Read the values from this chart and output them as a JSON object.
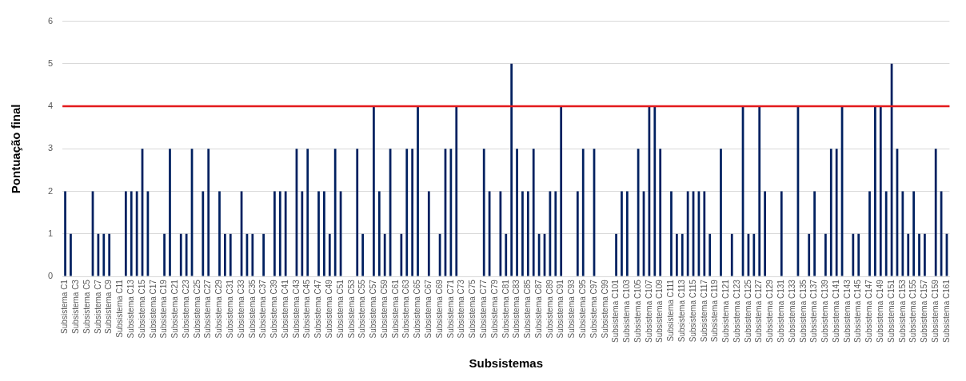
{
  "chart_data": {
    "type": "bar",
    "xlabel": "Subsistemas",
    "ylabel": "Pontuação final",
    "categories": [
      "Subsistema C1",
      null,
      "Subsistema C3",
      null,
      "Subsistema C5",
      null,
      "Subsistema C7",
      null,
      "Subsistema C9",
      null,
      "Subsistema C11",
      null,
      "Subsistema C13",
      null,
      "Subsistema C15",
      null,
      "Subsistema C17",
      null,
      "Subsistema C19",
      null,
      "Subsistema C21",
      null,
      "Subsistema C23",
      null,
      "Subsistema C25",
      null,
      "Subsistema C27",
      null,
      "Subsistema C29",
      null,
      "Subsistema C31",
      null,
      "Subsistema C33",
      null,
      "Subsistema C35",
      null,
      "Subsistema C37",
      null,
      "Subsistema C39",
      null,
      "Subsistema C41",
      null,
      "Subsistema C43",
      null,
      "Subsistema C45",
      null,
      "Subsistema C47",
      null,
      "Subsistema C49",
      null,
      "Subsistema C51",
      null,
      "Subsistema C53",
      null,
      "Subsistema C55",
      null,
      "Subsistema C57",
      null,
      "Subsistema C59",
      null,
      "Subsistema C61",
      null,
      "Subsistema C63",
      null,
      "Subsistema C65",
      null,
      "Subsistema C67",
      null,
      "Subsistema C69",
      null,
      "Subsistema C71",
      null,
      "Subsistema C73",
      null,
      "Subsistema C75",
      null,
      "Subsistema C77",
      null,
      "Subsistema C79",
      null,
      "Subsistema C81",
      null,
      "Subsistema C83",
      null,
      "Subsistema C85",
      null,
      "Subsistema C87",
      null,
      "Subsistema C89",
      null,
      "Subsistema C91",
      null,
      "Subsistema C93",
      null,
      "Subsistema C95",
      null,
      "Subsistema C97",
      null,
      "Subsistema C99",
      null,
      "Subsistema C101",
      null,
      "Subsistema C103",
      null,
      "Subsistema C105",
      null,
      "Subsistema C107",
      null,
      "Subsistema C109",
      null,
      "Subsistema C111",
      null,
      "Subsistema C113",
      null,
      "Subsistema C115",
      null,
      "Subsistema C117",
      null,
      "Subsistema C119",
      null,
      "Subsistema C121",
      null,
      "Subsistema C123",
      null,
      "Subsistema C125",
      null,
      "Subsistema C127",
      null,
      "Subsistema C129",
      null,
      "Subsistema C131",
      null,
      "Subsistema C133",
      null,
      "Subsistema C135",
      null,
      "Subsistema C137",
      null,
      "Subsistema C139",
      null,
      "Subsistema C141",
      null,
      "Subsistema C143",
      null,
      "Subsistema C145",
      null,
      "Subsistema C147",
      null,
      "Subsistema C149",
      null,
      "Subsistema C151",
      null,
      "Subsistema C153",
      null,
      "Subsistema C155",
      null,
      "Subsistema C157",
      null,
      "Subsistema C159",
      null,
      "Subsistema C161"
    ],
    "values": [
      2,
      1,
      0,
      0,
      0,
      2,
      1,
      1,
      1,
      0,
      0,
      2,
      2,
      2,
      3,
      2,
      0,
      0,
      1,
      3,
      0,
      1,
      1,
      3,
      0,
      2,
      3,
      0,
      2,
      1,
      1,
      0,
      2,
      1,
      1,
      0,
      1,
      0,
      2,
      2,
      2,
      0,
      3,
      2,
      3,
      0,
      2,
      2,
      1,
      3,
      2,
      0,
      0,
      3,
      1,
      0,
      4,
      2,
      1,
      3,
      0,
      1,
      3,
      3,
      4,
      0,
      2,
      0,
      1,
      3,
      3,
      4,
      0,
      0,
      0,
      0,
      3,
      2,
      0,
      2,
      1,
      5,
      3,
      2,
      2,
      3,
      1,
      1,
      2,
      2,
      4,
      0,
      0,
      2,
      3,
      0,
      3,
      0,
      0,
      0,
      1,
      2,
      2,
      0,
      3,
      2,
      4,
      4,
      3,
      0,
      2,
      1,
      1,
      2,
      2,
      2,
      2,
      1,
      0,
      3,
      0,
      1,
      0,
      4,
      1,
      1,
      4,
      2,
      0,
      0,
      2,
      0,
      0,
      4,
      0,
      1,
      2,
      0,
      1,
      3,
      3,
      4,
      0,
      1,
      1,
      0,
      2,
      4,
      4,
      2,
      5,
      3,
      2,
      1,
      2,
      1,
      1,
      0,
      3,
      2,
      1
    ],
    "color": "#002060",
    "ylim": [
      0,
      6
    ],
    "yticks": [
      0,
      1,
      2,
      3,
      4,
      5,
      6
    ],
    "grid": "y",
    "ref_lines": [
      {
        "axis": "y",
        "value": 4,
        "color": "#e31a1c"
      }
    ]
  }
}
